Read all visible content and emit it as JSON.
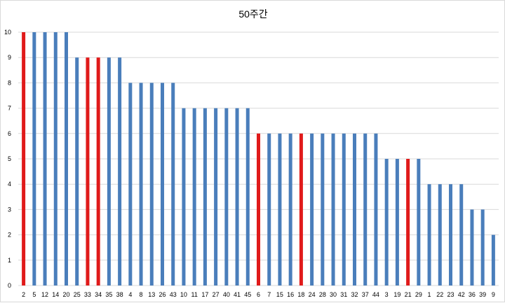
{
  "chart_data": {
    "type": "bar",
    "title": "50주간",
    "xlabel": "",
    "ylabel": "",
    "ylim": [
      0,
      10
    ],
    "yticks": [
      0,
      1,
      2,
      3,
      4,
      5,
      6,
      7,
      8,
      9,
      10
    ],
    "grid": true,
    "legend": "none",
    "categories": [
      "2",
      "5",
      "12",
      "14",
      "20",
      "25",
      "33",
      "34",
      "35",
      "38",
      "4",
      "8",
      "13",
      "26",
      "43",
      "10",
      "11",
      "17",
      "27",
      "40",
      "41",
      "45",
      "6",
      "7",
      "15",
      "16",
      "18",
      "24",
      "28",
      "30",
      "31",
      "32",
      "37",
      "44",
      "3",
      "19",
      "21",
      "29",
      "1",
      "22",
      "23",
      "42",
      "36",
      "39",
      "9"
    ],
    "values": [
      10,
      10,
      10,
      10,
      10,
      9,
      9,
      9,
      9,
      9,
      8,
      8,
      8,
      8,
      8,
      7,
      7,
      7,
      7,
      7,
      7,
      7,
      6,
      6,
      6,
      6,
      6,
      6,
      6,
      6,
      6,
      6,
      6,
      6,
      5,
      5,
      5,
      5,
      4,
      4,
      4,
      4,
      3,
      3,
      2
    ],
    "highlighted": [
      "2",
      "33",
      "34",
      "6",
      "18",
      "21"
    ],
    "colors": {
      "default": "#4a7ebb",
      "highlight": "#e01a1a",
      "grid": "#d9d9d9"
    }
  }
}
